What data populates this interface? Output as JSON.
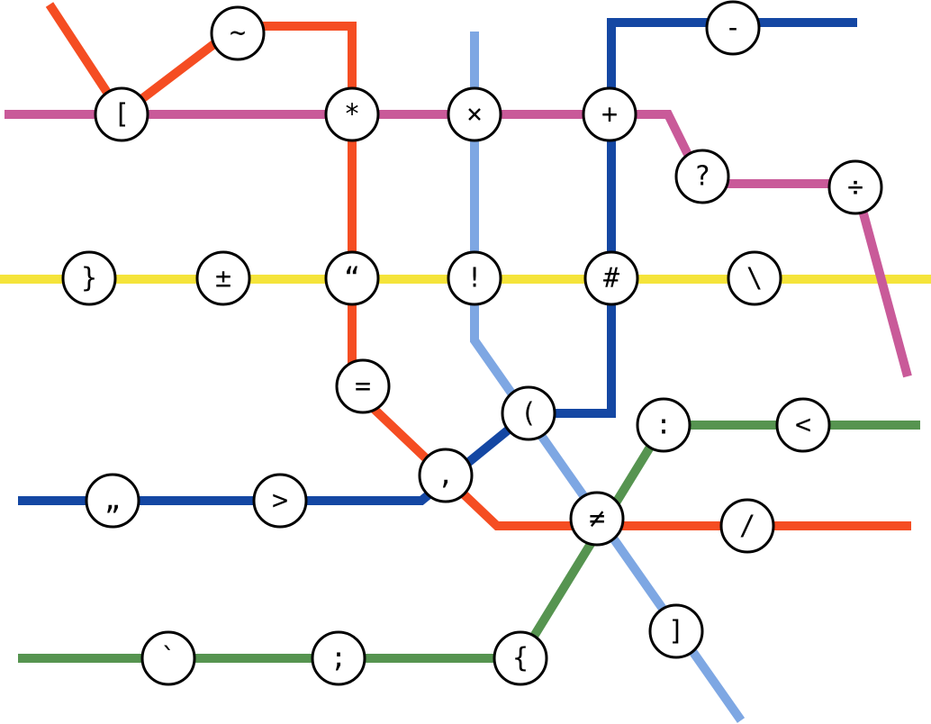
{
  "lines": [
    {
      "id": "pink",
      "color": "#c95a99"
    },
    {
      "id": "yellow",
      "color": "#f5e43a"
    },
    {
      "id": "orange",
      "color": "#f54d22"
    },
    {
      "id": "light-blue",
      "color": "#7ea7e3"
    },
    {
      "id": "navy",
      "color": "#1447a3"
    },
    {
      "id": "green",
      "color": "#569450"
    }
  ],
  "stations": [
    {
      "id": "tilde",
      "symbol": "~"
    },
    {
      "id": "bracket-open",
      "symbol": "["
    },
    {
      "id": "asterisk",
      "symbol": "*"
    },
    {
      "id": "times",
      "symbol": "×"
    },
    {
      "id": "plus",
      "symbol": "+"
    },
    {
      "id": "minus",
      "symbol": "-"
    },
    {
      "id": "question",
      "symbol": "?"
    },
    {
      "id": "divide",
      "symbol": "÷"
    },
    {
      "id": "brace-close",
      "symbol": "}"
    },
    {
      "id": "plus-minus",
      "symbol": "±"
    },
    {
      "id": "quote-open",
      "symbol": "“"
    },
    {
      "id": "exclaim",
      "symbol": "!"
    },
    {
      "id": "hash",
      "symbol": "#"
    },
    {
      "id": "backslash",
      "symbol": "\\"
    },
    {
      "id": "equals",
      "symbol": "="
    },
    {
      "id": "paren-open",
      "symbol": "("
    },
    {
      "id": "colon",
      "symbol": ":"
    },
    {
      "id": "less-than",
      "symbol": "<"
    },
    {
      "id": "low-quote",
      "symbol": "„"
    },
    {
      "id": "greater-than",
      "symbol": ">"
    },
    {
      "id": "comma",
      "symbol": ","
    },
    {
      "id": "not-equal",
      "symbol": "≠"
    },
    {
      "id": "slash",
      "symbol": "/"
    },
    {
      "id": "bracket-close",
      "symbol": "]"
    },
    {
      "id": "backtick",
      "symbol": "`"
    },
    {
      "id": "semicolon",
      "symbol": ";"
    },
    {
      "id": "brace-open",
      "symbol": "{"
    }
  ]
}
